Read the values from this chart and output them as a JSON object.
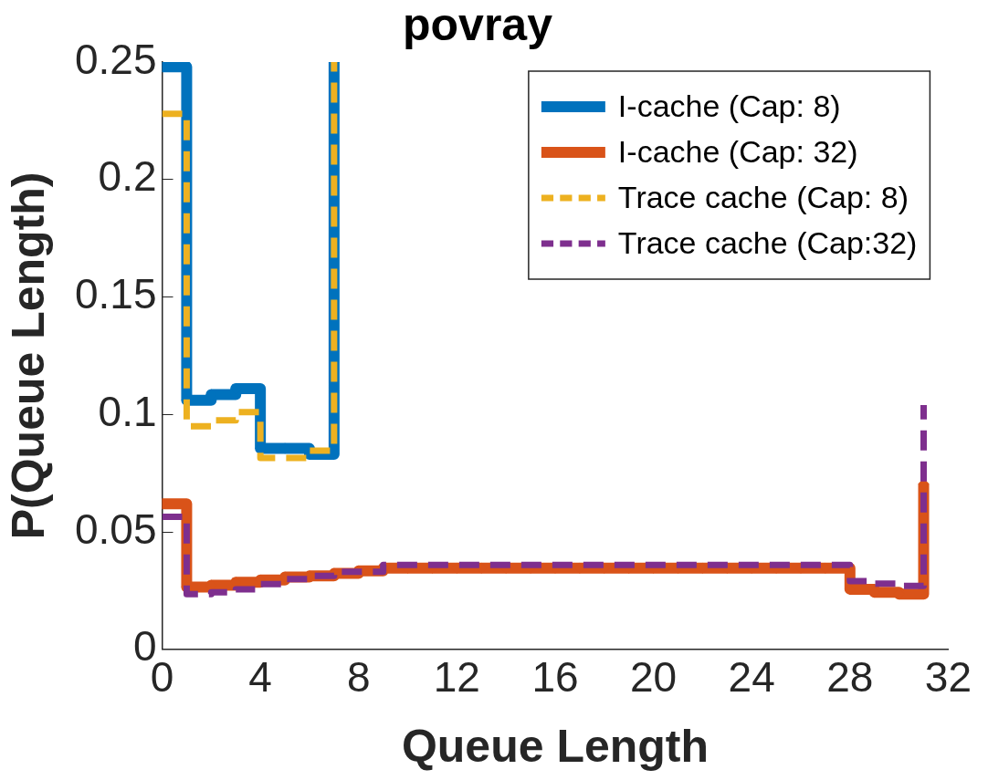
{
  "chart_data": {
    "type": "step",
    "title": "povray",
    "xlabel": "Queue Length",
    "ylabel": "P(Queue Length)",
    "xlim": [
      0,
      32
    ],
    "xticks": [
      0,
      4,
      8,
      12,
      16,
      20,
      24,
      28,
      32
    ],
    "ylim": [
      0,
      0.25
    ],
    "yticks": [
      0,
      0.05,
      0.1,
      0.15,
      0.2,
      0.25
    ],
    "grid": false,
    "legend": "top right",
    "series": [
      {
        "name": "I-cache (Cap: 8)",
        "color": "#0072bd",
        "marker": "diamond",
        "line_style": "solid",
        "x": [
          0,
          1,
          2,
          3,
          4,
          5,
          6,
          7
        ],
        "values": [
          0.248,
          0.106,
          0.1085,
          0.111,
          0.0855,
          0.0855,
          0.083,
          0.25
        ]
      },
      {
        "name": "I-cache (Cap: 32)",
        "color": "#d95319",
        "marker": "diamond",
        "line_style": "solid",
        "x": [
          0,
          1,
          2,
          3,
          4,
          5,
          6,
          7,
          8,
          9,
          10,
          11,
          12,
          13,
          14,
          15,
          16,
          17,
          18,
          19,
          20,
          21,
          22,
          23,
          24,
          25,
          26,
          27,
          28,
          29,
          30,
          31
        ],
        "values": [
          0.062,
          0.0265,
          0.0273,
          0.0286,
          0.0295,
          0.0308,
          0.0313,
          0.0323,
          0.0334,
          0.0346,
          0.0346,
          0.0346,
          0.0346,
          0.0346,
          0.0346,
          0.0346,
          0.0346,
          0.0346,
          0.0346,
          0.0346,
          0.0346,
          0.0346,
          0.0346,
          0.0346,
          0.0346,
          0.0346,
          0.0346,
          0.0346,
          0.0256,
          0.0243,
          0.0235,
          0.0705
        ]
      },
      {
        "name": "Trace cache (Cap: 8)",
        "color": "#edb120",
        "marker": "none",
        "line_style": "dashed",
        "x": [
          0,
          1,
          2,
          3,
          4,
          5,
          6,
          7
        ],
        "values": [
          0.228,
          0.095,
          0.0975,
          0.101,
          0.0815,
          0.0815,
          0.0846,
          0.25
        ]
      },
      {
        "name": "Trace cache (Cap:32)",
        "color": "#7e2f8e",
        "marker": "none",
        "line_style": "dashed",
        "x": [
          0,
          1,
          2,
          3,
          4,
          5,
          6,
          7,
          8,
          9,
          10,
          11,
          12,
          13,
          14,
          15,
          16,
          17,
          18,
          19,
          20,
          21,
          22,
          23,
          24,
          25,
          26,
          27,
          28,
          29,
          30,
          31
        ],
        "values": [
          0.0564,
          0.0235,
          0.0243,
          0.0256,
          0.0278,
          0.0299,
          0.0313,
          0.033,
          0.033,
          0.0359,
          0.0359,
          0.0359,
          0.0359,
          0.0359,
          0.0359,
          0.0359,
          0.0359,
          0.0359,
          0.0359,
          0.0359,
          0.0359,
          0.0359,
          0.0359,
          0.0359,
          0.0359,
          0.0359,
          0.0359,
          0.0359,
          0.029,
          0.028,
          0.027,
          0.104
        ]
      }
    ]
  }
}
